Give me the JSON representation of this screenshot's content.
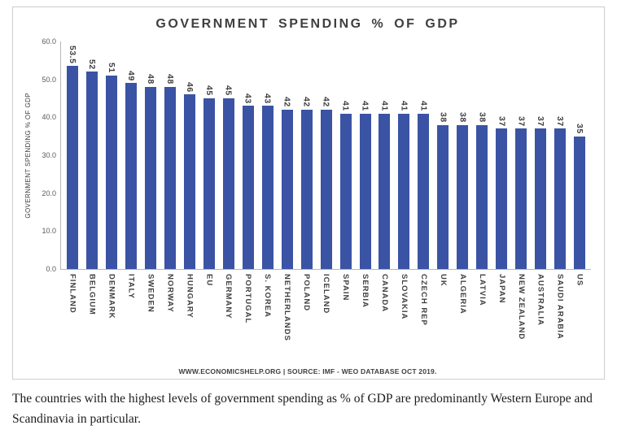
{
  "chart_data": {
    "type": "bar",
    "title": "GOVERNMENT SPENDING % OF GDP",
    "xlabel": "",
    "ylabel": "GOVERNMENT SPENDING % OF GDP",
    "ylim": [
      0,
      60
    ],
    "ytick_step": 10,
    "yticks": [
      "0.0",
      "10.0",
      "20.0",
      "30.0",
      "40.0",
      "50.0",
      "60.0"
    ],
    "grid": false,
    "legend": "none",
    "bar_color": "#3A53A4",
    "source": "WWW.ECONOMICSHELP.ORG | SOURCE: IMF - WEO DATABASE OCT 2019.",
    "categories": [
      "FINLAND",
      "BELGIUM",
      "DENMARK",
      "ITALY",
      "SWEDEN",
      "NORWAY",
      "HUNGARY",
      "EU",
      "GERMANY",
      "PORTUGAL",
      "S. KOREA",
      "NETHERLANDS",
      "POLAND",
      "ICELAND",
      "SPAIN",
      "SERBIA",
      "CANADA",
      "SLOVAKIA",
      "CZECH REP",
      "UK",
      "ALGERIA",
      "LATVIA",
      "JAPAN",
      "NEW ZEALAND",
      "AUSTRALIA",
      "SAUDI ARABIA",
      "US"
    ],
    "values": [
      53.5,
      52,
      51,
      49,
      48,
      48,
      46,
      45,
      45,
      43,
      43,
      42,
      42,
      42,
      41,
      41,
      41,
      41,
      41,
      38,
      38,
      38,
      37,
      37,
      37,
      37,
      35
    ],
    "value_labels": [
      "53.5",
      "52",
      "51",
      "49",
      "48",
      "48",
      "46",
      "45",
      "45",
      "43",
      "43",
      "42",
      "42",
      "42",
      "41",
      "41",
      "41",
      "41",
      "41",
      "38",
      "38",
      "38",
      "37",
      "37",
      "37",
      "37",
      "35"
    ]
  },
  "caption": "The countries with the highest levels of government spending as % of GDP are predominantly Western Europe and Scandinavia in particular."
}
